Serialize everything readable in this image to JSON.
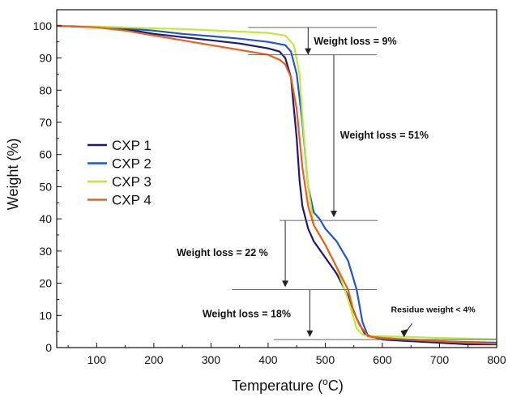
{
  "chart_data": {
    "type": "line",
    "xlabel": "Temperature (",
    "xlabel_unit_sup": "o",
    "xlabel_unit_tail": "C)",
    "ylabel": "Weight (%)",
    "xlim": [
      30,
      800
    ],
    "ylim": [
      0,
      105
    ],
    "xticks": [
      100,
      200,
      300,
      400,
      500,
      600,
      700,
      800
    ],
    "yticks": [
      0,
      10,
      20,
      30,
      40,
      50,
      60,
      70,
      80,
      90,
      100
    ],
    "grid": false,
    "legend_position": "left-center",
    "series": [
      {
        "name": "CXP 1",
        "color": "#1f1a6e",
        "x": [
          30,
          100,
          150,
          200,
          250,
          300,
          350,
          400,
          420,
          430,
          440,
          450,
          455,
          460,
          470,
          480,
          500,
          520,
          540,
          555,
          570,
          600,
          650,
          700,
          750,
          800
        ],
        "y": [
          100,
          99.6,
          99,
          97.5,
          96.5,
          95.5,
          94.5,
          93,
          92,
          90,
          84,
          65,
          52,
          44,
          37,
          33,
          28,
          23,
          16,
          9,
          4,
          2.5,
          2,
          1.5,
          1,
          1
        ]
      },
      {
        "name": "CXP 2",
        "color": "#2457c5",
        "x": [
          30,
          100,
          150,
          200,
          250,
          300,
          350,
          400,
          430,
          440,
          450,
          460,
          465,
          470,
          480,
          490,
          500,
          520,
          540,
          555,
          565,
          575,
          600,
          650,
          700,
          750,
          800
        ],
        "y": [
          100,
          99.6,
          99.2,
          98.5,
          97.5,
          96.8,
          96,
          95,
          94,
          92,
          85,
          70,
          60,
          50,
          42,
          40,
          37,
          33,
          27,
          18,
          8,
          3.5,
          2.8,
          2.3,
          2,
          1.7,
          1.5
        ]
      },
      {
        "name": "CXP 3",
        "color": "#c3e83b",
        "x": [
          30,
          100,
          150,
          200,
          250,
          300,
          350,
          400,
          430,
          445,
          455,
          460,
          470,
          480,
          490,
          500,
          520,
          540,
          555,
          565,
          575,
          600,
          650,
          700,
          750,
          800
        ],
        "y": [
          100,
          99.8,
          99.5,
          99.2,
          99,
          98.6,
          98.2,
          97.8,
          97,
          94,
          85,
          72,
          50,
          38,
          35,
          32,
          25,
          15,
          6,
          4,
          3.5,
          3.5,
          3.3,
          3,
          2.8,
          2.6
        ]
      },
      {
        "name": "CXP 4",
        "color": "#e8601f",
        "x": [
          30,
          100,
          150,
          200,
          250,
          300,
          350,
          400,
          420,
          430,
          440,
          450,
          460,
          470,
          480,
          490,
          500,
          520,
          540,
          550,
          560,
          575,
          600,
          650,
          700,
          750,
          800
        ],
        "y": [
          100,
          99.5,
          98.5,
          97,
          95.5,
          94,
          92.5,
          91,
          89.5,
          88,
          84,
          74,
          56,
          44,
          38,
          35,
          32,
          25,
          18,
          11,
          7,
          3.5,
          3,
          2.5,
          2,
          1.5,
          1.2
        ]
      }
    ],
    "annotations": {
      "weight_loss_1": "Weight loss = 9%",
      "weight_loss_2": "Weight loss = 51%",
      "weight_loss_3": "Weight loss = 22 %",
      "weight_loss_4": "Weight loss = 18%",
      "residue": "Residue weight < 4%"
    }
  }
}
